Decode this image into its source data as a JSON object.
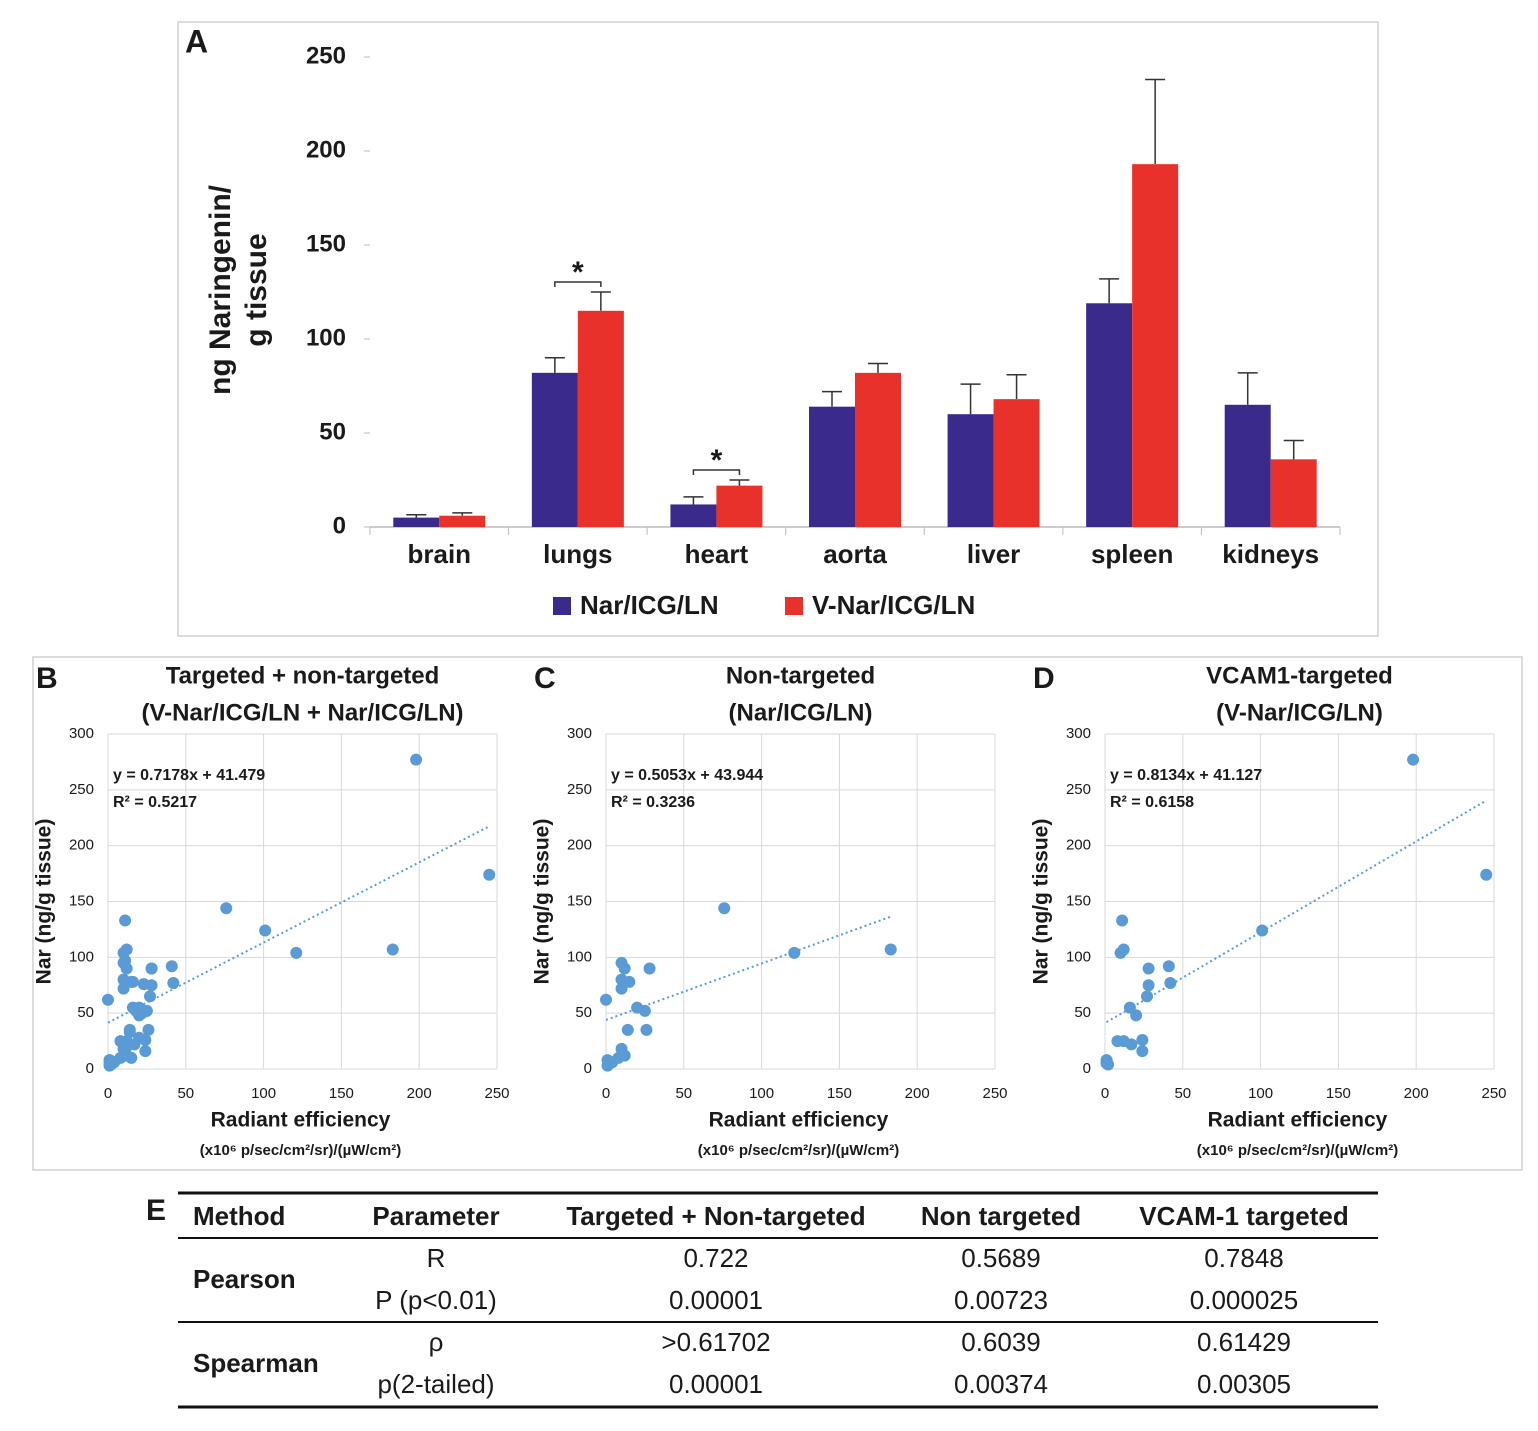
{
  "chart_data": [
    {
      "type": "bar",
      "panel_label": "A",
      "ylabel": [
        "ng Naringenin/",
        "g tissue"
      ],
      "categories": [
        "brain",
        "lungs",
        "heart",
        "aorta",
        "liver",
        "spleen",
        "kidneys"
      ],
      "series": [
        {
          "name": "Nar/ICG/LN",
          "color": "#3a2a8c",
          "values": [
            5,
            82,
            12,
            64,
            60,
            119,
            65
          ],
          "errors": [
            1.5,
            8,
            4,
            8,
            16,
            13,
            17
          ]
        },
        {
          "name": "V-Nar/ICG/LN",
          "color": "#e8312a",
          "values": [
            6,
            115,
            22,
            82,
            68,
            193,
            36
          ],
          "errors": [
            1.5,
            10,
            3,
            5,
            13,
            45,
            10
          ]
        }
      ],
      "annotations": [
        {
          "text": "*",
          "category": "lungs"
        },
        {
          "text": "*",
          "category": "heart"
        }
      ],
      "ylim": [
        0,
        250
      ],
      "yticks": [
        0,
        50,
        100,
        150,
        200,
        250
      ]
    },
    {
      "type": "scatter",
      "panel_label": "B",
      "title": [
        "Targeted + non-targeted",
        "(V-Nar/ICG/LN + Nar/ICG/LN)"
      ],
      "xlabel": "Radiant efficiency",
      "xunits": "(x10⁶ p/sec/cm²/sr)/(µW/cm²)",
      "ylabel": "Nar (ng/g tissue)",
      "color": "#5b9bd5",
      "x": [
        0,
        1,
        1,
        4,
        76,
        121,
        183,
        10,
        12,
        10,
        15,
        10,
        28,
        20,
        25,
        26,
        14,
        10,
        12,
        8,
        198,
        245,
        101,
        41,
        28,
        42,
        28,
        27,
        11,
        12,
        10,
        16,
        20,
        8,
        12,
        17,
        24,
        24,
        1,
        1,
        2,
        11,
        16,
        23,
        22,
        14,
        12,
        15,
        20,
        18
      ],
      "y": [
        62,
        8,
        3,
        6,
        144,
        104,
        107,
        95,
        90,
        80,
        78,
        72,
        90,
        55,
        52,
        35,
        35,
        18,
        12,
        10,
        277,
        174,
        124,
        92,
        90,
        77,
        75,
        65,
        133,
        107,
        104,
        55,
        48,
        25,
        25,
        22,
        26,
        16,
        8,
        5,
        4,
        97,
        78,
        76,
        50,
        33,
        20,
        10,
        28,
        52
      ],
      "trendline": {
        "label": "y = 0.7178x + 41.479",
        "slope": 0.7178,
        "intercept": 41.479,
        "r2_label": "R² = 0.5217"
      },
      "xlim": [
        0,
        250
      ],
      "xticks": [
        0,
        50,
        100,
        150,
        200,
        250
      ],
      "ylim": [
        0,
        300
      ],
      "yticks": [
        0,
        50,
        100,
        150,
        200,
        250,
        300
      ],
      "grid": true
    },
    {
      "type": "scatter",
      "panel_label": "C",
      "title": [
        "Non-targeted",
        "(Nar/ICG/LN)"
      ],
      "xlabel": "Radiant efficiency",
      "xunits": "(x10⁶ p/sec/cm²/sr)/(µW/cm²)",
      "ylabel": "Nar (ng/g tissue)",
      "color": "#5b9bd5",
      "x": [
        0,
        1,
        1,
        4,
        76,
        121,
        183,
        10,
        12,
        10,
        15,
        10,
        28,
        20,
        25,
        26,
        14,
        10,
        12,
        8
      ],
      "y": [
        62,
        8,
        3,
        6,
        144,
        104,
        107,
        95,
        90,
        80,
        78,
        72,
        90,
        55,
        52,
        35,
        35,
        18,
        12,
        10
      ],
      "trendline": {
        "label": "y = 0.5053x + 43.944",
        "slope": 0.5053,
        "intercept": 43.944,
        "r2_label": "R² = 0.3236"
      },
      "xlim": [
        0,
        250
      ],
      "xticks": [
        0,
        50,
        100,
        150,
        200,
        250
      ],
      "ylim": [
        0,
        300
      ],
      "yticks": [
        0,
        50,
        100,
        150,
        200,
        250,
        300
      ],
      "grid": true
    },
    {
      "type": "scatter",
      "panel_label": "D",
      "title": [
        "VCAM1-targeted",
        "(V-Nar/ICG/LN)"
      ],
      "xlabel": "Radiant efficiency",
      "xunits": "(x10⁶ p/sec/cm²/sr)/(µW/cm²)",
      "ylabel": "Nar (ng/g tissue)",
      "color": "#5b9bd5",
      "x": [
        198,
        245,
        101,
        41,
        28,
        42,
        28,
        27,
        11,
        12,
        10,
        16,
        20,
        8,
        12,
        17,
        24,
        24,
        1,
        1,
        2
      ],
      "y": [
        277,
        174,
        124,
        92,
        90,
        77,
        75,
        65,
        133,
        107,
        104,
        55,
        48,
        25,
        25,
        22,
        26,
        16,
        8,
        5,
        4
      ],
      "trendline": {
        "label": "y = 0.8134x + 41.127",
        "slope": 0.8134,
        "intercept": 41.127,
        "r2_label": "R² = 0.6158"
      },
      "xlim": [
        0,
        250
      ],
      "xticks": [
        0,
        50,
        100,
        150,
        200,
        250
      ],
      "ylim": [
        0,
        300
      ],
      "yticks": [
        0,
        50,
        100,
        150,
        200,
        250,
        300
      ],
      "grid": true
    }
  ],
  "table": {
    "panel_label": "E",
    "header": [
      "Method",
      "Parameter",
      "Targeted + Non-targeted",
      "Non targeted",
      "VCAM-1 targeted"
    ],
    "groups": [
      {
        "method": "Pearson",
        "rows": [
          [
            "R",
            "0.722",
            "0.5689",
            "0.7848"
          ],
          [
            "P (p<0.01)",
            "0.00001",
            "0.00723",
            "0.000025"
          ]
        ]
      },
      {
        "method": "Spearman",
        "rows": [
          [
            "ρ",
            ">0.61702",
            "0.6039",
            "0.61429"
          ],
          [
            "p(2-tailed)",
            "0.00001",
            "0.00374",
            "0.00305"
          ]
        ]
      }
    ]
  }
}
